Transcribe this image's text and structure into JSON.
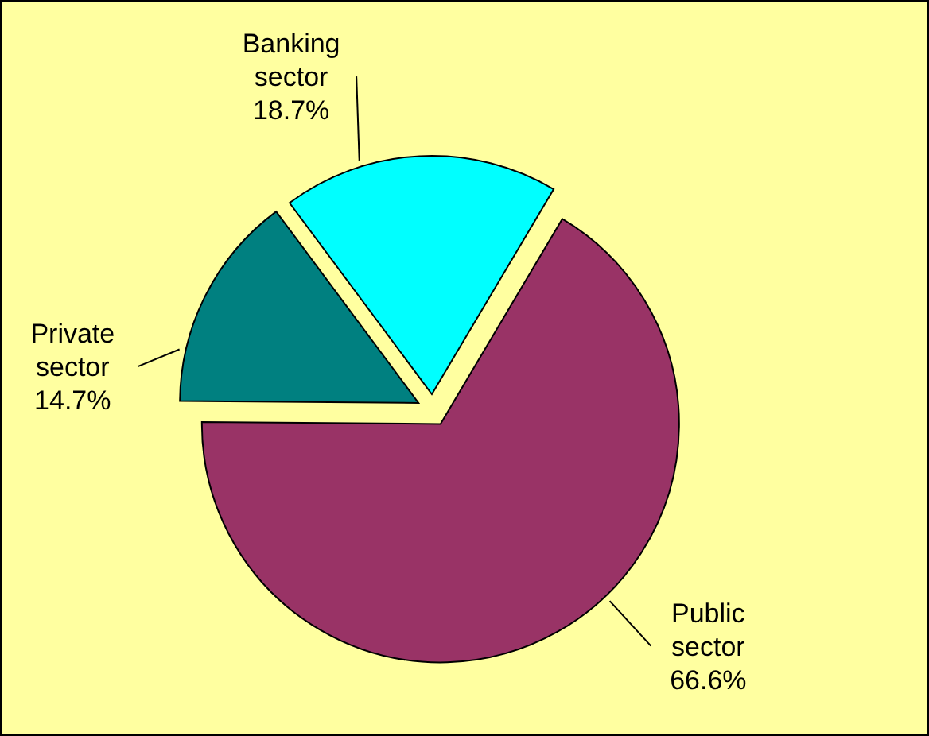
{
  "chart_data": {
    "type": "pie",
    "categories": [
      "Public sector",
      "Private sector",
      "Banking sector"
    ],
    "values": [
      66.6,
      14.7,
      18.7
    ],
    "colors": [
      "#993366",
      "#008080",
      "#00ffff"
    ],
    "value_labels": [
      "66.6%",
      "14.7%",
      "18.7%"
    ]
  }
}
